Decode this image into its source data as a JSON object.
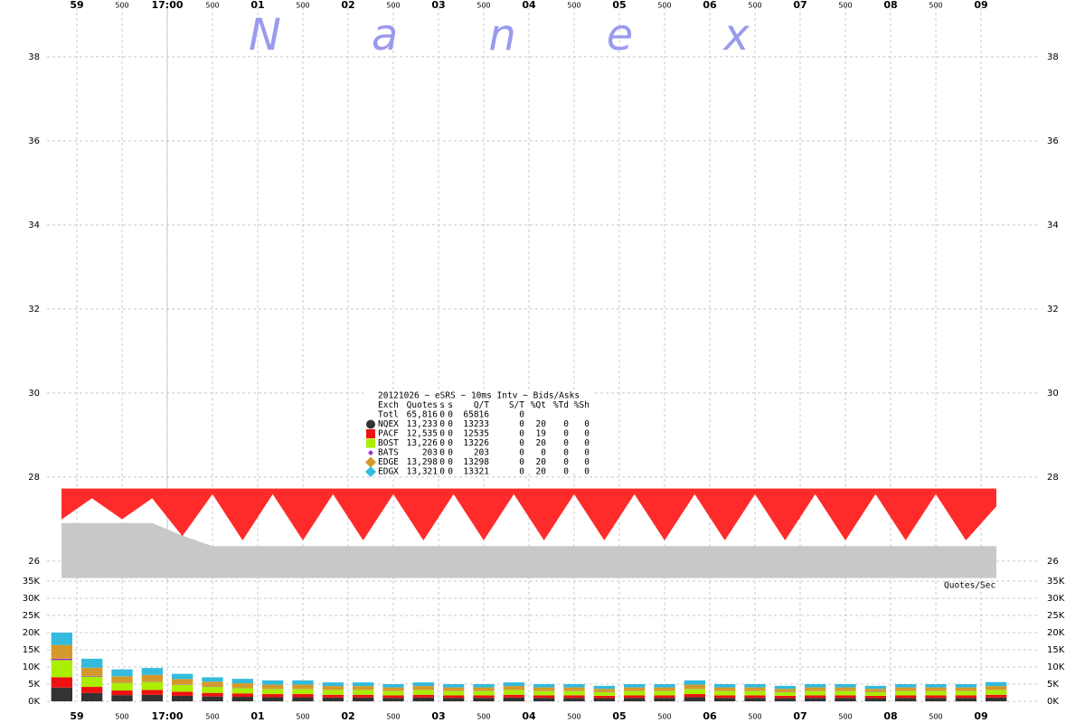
{
  "chart_data": [
    {
      "type": "range",
      "xlim": [
        -71.4,
        565.8
      ],
      "ylim": [
        25.48,
        39.18
      ],
      "yticks": [
        26,
        28,
        30,
        32,
        34,
        36,
        38
      ],
      "xticks": [
        {
          "value": -60,
          "label": "59"
        },
        {
          "value": -30,
          "label": "500"
        },
        {
          "value": 0,
          "label": "17:00"
        },
        {
          "value": 30,
          "label": "500"
        },
        {
          "value": 60,
          "label": "01"
        },
        {
          "value": 90,
          "label": "500"
        },
        {
          "value": 120,
          "label": "02"
        },
        {
          "value": 150,
          "label": "500"
        },
        {
          "value": 180,
          "label": "03"
        },
        {
          "value": 210,
          "label": "500"
        },
        {
          "value": 240,
          "label": "04"
        },
        {
          "value": 270,
          "label": "500"
        },
        {
          "value": 300,
          "label": "05"
        },
        {
          "value": 330,
          "label": "500"
        },
        {
          "value": 360,
          "label": "06"
        },
        {
          "value": 390,
          "label": "500"
        },
        {
          "value": 420,
          "label": "07"
        },
        {
          "value": 450,
          "label": "500"
        },
        {
          "value": 480,
          "label": "08"
        },
        {
          "value": 510,
          "label": "500"
        },
        {
          "value": 540,
          "label": "09"
        }
      ],
      "grid": true,
      "x": [
        -70,
        -50,
        -30,
        -10,
        10,
        30,
        50,
        70,
        90,
        110,
        130,
        150,
        170,
        190,
        210,
        230,
        250,
        270,
        290,
        310,
        330,
        350,
        370,
        390,
        410,
        430,
        450,
        470,
        490,
        510,
        530,
        550
      ],
      "series": [
        {
          "color": "#c8c8c8",
          "low": [
            25.6,
            25.6,
            25.6,
            25.6,
            25.6,
            25.6,
            25.6,
            25.6,
            25.6,
            25.6,
            25.6,
            25.6,
            25.6,
            25.6,
            25.6,
            25.6,
            25.6,
            25.6,
            25.6,
            25.6,
            25.6,
            25.6,
            25.6,
            25.6,
            25.6,
            25.6,
            25.6,
            25.6,
            25.6,
            25.6,
            25.6,
            25.6
          ],
          "high": [
            26.9,
            26.9,
            26.9,
            26.9,
            26.6,
            26.35,
            26.35,
            26.35,
            26.35,
            26.35,
            26.35,
            26.35,
            26.35,
            26.35,
            26.35,
            26.35,
            26.35,
            26.35,
            26.35,
            26.35,
            26.35,
            26.35,
            26.35,
            26.35,
            26.35,
            26.35,
            26.35,
            26.35,
            26.35,
            26.35,
            26.35,
            26.35
          ]
        },
        {
          "color": "#ff2a2a",
          "low": [
            27.0,
            27.5,
            27.0,
            27.5,
            26.6,
            27.6,
            26.5,
            27.6,
            26.5,
            27.6,
            26.5,
            27.6,
            26.5,
            27.6,
            26.5,
            27.6,
            26.5,
            27.6,
            26.5,
            27.6,
            26.5,
            27.6,
            26.5,
            27.6,
            26.5,
            27.6,
            26.5,
            27.6,
            26.5,
            27.6,
            26.5,
            27.3
          ],
          "high": [
            27.72,
            27.72,
            27.72,
            27.72,
            27.72,
            27.72,
            27.72,
            27.72,
            27.72,
            27.72,
            27.72,
            27.72,
            27.72,
            27.72,
            27.72,
            27.72,
            27.72,
            27.72,
            27.72,
            27.72,
            27.72,
            27.72,
            27.72,
            27.72,
            27.72,
            27.72,
            27.72,
            27.72,
            27.72,
            27.72,
            27.72,
            27.72
          ]
        }
      ],
      "watermark": "Nanex",
      "legend_table": {
        "title": "20121026 ~ eSRS ~ 10ms Intv ~ Bids/Asks",
        "header": [
          "Exch",
          "Quotes",
          "s",
          "s",
          "Q/T",
          "S/T",
          "%Qt",
          "%Td",
          "%Sh"
        ],
        "rows": [
          [
            "Totl",
            "65,816",
            "0",
            "0",
            "65816",
            "0",
            "",
            "",
            ""
          ],
          [
            "NQEX",
            "13,233",
            "0",
            "0",
            "13233",
            "0",
            "20",
            "0",
            "0"
          ],
          [
            "PACF",
            "12,535",
            "0",
            "0",
            "12535",
            "0",
            "19",
            "0",
            "0"
          ],
          [
            "BOST",
            "13,226",
            "0",
            "0",
            "13226",
            "0",
            "20",
            "0",
            "0"
          ],
          [
            "BATS",
            "203",
            "0",
            "0",
            "203",
            "0",
            "0",
            "0",
            "0"
          ],
          [
            "EDGE",
            "13,298",
            "0",
            "0",
            "13298",
            "0",
            "20",
            "0",
            "0"
          ],
          [
            "EDGX",
            "13,321",
            "0",
            "0",
            "13321",
            "0",
            "20",
            "0",
            "0"
          ]
        ]
      }
    },
    {
      "type": "stacked-bar",
      "ylabel": "Quotes/Sec",
      "xlim": [
        -71.4,
        565.8
      ],
      "ylim": [
        0,
        35000
      ],
      "yticks": [
        {
          "value": 0,
          "label": "0K"
        },
        {
          "value": 5000,
          "label": "5K"
        },
        {
          "value": 10000,
          "label": "10K"
        },
        {
          "value": 15000,
          "label": "15K"
        },
        {
          "value": 20000,
          "label": "20K"
        },
        {
          "value": 25000,
          "label": "25K"
        },
        {
          "value": 30000,
          "label": "30K"
        },
        {
          "value": 35000,
          "label": "35K"
        }
      ],
      "xticks": [
        {
          "value": -60,
          "label": "59"
        },
        {
          "value": -30,
          "label": "500"
        },
        {
          "value": 0,
          "label": "17:00"
        },
        {
          "value": 30,
          "label": "500"
        },
        {
          "value": 60,
          "label": "01"
        },
        {
          "value": 90,
          "label": "500"
        },
        {
          "value": 120,
          "label": "02"
        },
        {
          "value": 150,
          "label": "500"
        },
        {
          "value": 180,
          "label": "03"
        },
        {
          "value": 210,
          "label": "500"
        },
        {
          "value": 240,
          "label": "04"
        },
        {
          "value": 270,
          "label": "500"
        },
        {
          "value": 300,
          "label": "05"
        },
        {
          "value": 330,
          "label": "500"
        },
        {
          "value": 360,
          "label": "06"
        },
        {
          "value": 390,
          "label": "500"
        },
        {
          "value": 420,
          "label": "07"
        },
        {
          "value": 450,
          "label": "500"
        },
        {
          "value": 480,
          "label": "08"
        },
        {
          "value": 510,
          "label": "500"
        },
        {
          "value": 540,
          "label": "09"
        }
      ],
      "grid": true,
      "x": [
        -70,
        -50,
        -30,
        -10,
        10,
        30,
        50,
        70,
        90,
        110,
        130,
        150,
        170,
        190,
        210,
        230,
        250,
        270,
        290,
        310,
        330,
        350,
        370,
        390,
        410,
        430,
        450,
        470,
        490,
        510,
        530,
        550
      ],
      "series": [
        {
          "name": "NQEX",
          "color": "#333333",
          "values": [
            4000,
            2400,
            1800,
            1900,
            1600,
            1400,
            1300,
            1200,
            1200,
            1100,
            1100,
            1000,
            1100,
            1000,
            1000,
            1100,
            1000,
            1000,
            900,
            1000,
            1000,
            1200,
            1000,
            1000,
            900,
            1000,
            1000,
            900,
            1000,
            1000,
            1000,
            1100
          ]
        },
        {
          "name": "PACF",
          "color": "#ee1111",
          "values": [
            3000,
            1800,
            1350,
            1400,
            1200,
            1050,
            1000,
            900,
            900,
            800,
            800,
            750,
            800,
            750,
            750,
            800,
            750,
            750,
            700,
            750,
            750,
            900,
            750,
            750,
            700,
            750,
            750,
            700,
            750,
            750,
            750,
            800
          ]
        },
        {
          "name": "BOST",
          "color": "#aaee00",
          "values": [
            5000,
            3000,
            2250,
            2400,
            2000,
            1750,
            1600,
            1500,
            1500,
            1400,
            1400,
            1250,
            1400,
            1250,
            1250,
            1400,
            1250,
            1250,
            1100,
            1250,
            1250,
            1500,
            1250,
            1250,
            1100,
            1250,
            1250,
            1100,
            1250,
            1250,
            1250,
            1400
          ]
        },
        {
          "name": "BATS",
          "color": "#9933cc",
          "values": [
            400,
            200,
            100,
            100,
            100,
            100,
            50,
            50,
            50,
            50,
            50,
            50,
            50,
            50,
            50,
            50,
            50,
            50,
            50,
            50,
            50,
            50,
            50,
            50,
            50,
            50,
            50,
            50,
            50,
            50,
            50,
            50
          ]
        },
        {
          "name": "EDGE",
          "color": "#d4992a",
          "values": [
            4000,
            2400,
            1800,
            1900,
            1600,
            1400,
            1300,
            1200,
            1200,
            1100,
            1100,
            1000,
            1100,
            1000,
            1000,
            1100,
            1000,
            1000,
            900,
            1000,
            1000,
            1200,
            1000,
            1000,
            900,
            1000,
            1000,
            900,
            1000,
            1000,
            1000,
            1100
          ]
        },
        {
          "name": "EDGX",
          "color": "#33bbdd",
          "values": [
            3600,
            2600,
            2000,
            2000,
            1500,
            1300,
            1300,
            1250,
            1250,
            1050,
            1050,
            950,
            1050,
            950,
            950,
            1050,
            950,
            950,
            850,
            950,
            950,
            1250,
            950,
            950,
            850,
            950,
            950,
            850,
            950,
            950,
            950,
            1150
          ]
        }
      ]
    }
  ]
}
